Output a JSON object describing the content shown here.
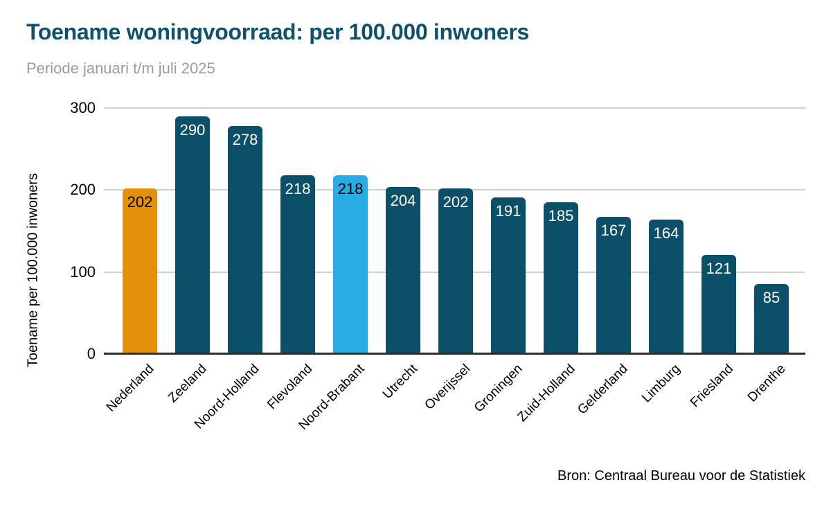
{
  "chart_data": {
    "type": "bar",
    "title": "Toename woningvoorraad: per 100.000 inwoners",
    "subtitle": "Periode januari t/m juli 2025",
    "ylabel": "Toename per 100.000 inwoners",
    "xlabel": "",
    "source": "Bron: Centraal Bureau voor de Statistiek",
    "ylim": [
      0,
      300
    ],
    "yticks": [
      0,
      100,
      200,
      300
    ],
    "grid": true,
    "legend": "none",
    "categories": [
      "Nederland",
      "Zeeland",
      "Noord-Holland",
      "Flevoland",
      "Noord-Brabant",
      "Utrecht",
      "Overijssel",
      "Groningen",
      "Zuid-Holland",
      "Gelderland",
      "Limburg",
      "Friesland",
      "Drenthe"
    ],
    "values": [
      202,
      290,
      278,
      218,
      218,
      204,
      202,
      191,
      185,
      167,
      164,
      121,
      85
    ],
    "bar_colors": [
      "#E5900A",
      "#0B4F68",
      "#0B4F68",
      "#0B4F68",
      "#29ACE3",
      "#0B4F68",
      "#0B4F68",
      "#0B4F68",
      "#0B4F68",
      "#0B4F68",
      "#0B4F68",
      "#0B4F68",
      "#0B4F68"
    ],
    "value_label_colors": [
      "#000000",
      "#FFFFFF",
      "#FFFFFF",
      "#FFFFFF",
      "#000000",
      "#FFFFFF",
      "#FFFFFF",
      "#FFFFFF",
      "#FFFFFF",
      "#FFFFFF",
      "#FFFFFF",
      "#FFFFFF",
      "#FFFFFF"
    ],
    "colors": {
      "default_bar": "#0B4F68",
      "highlight_nederland": "#E5900A",
      "highlight_noord_brabant": "#29ACE3",
      "title": "#0F506B",
      "subtitle": "#9C9C9C",
      "gridline": "#CFCFCF",
      "baseline": "#2E2B28"
    }
  }
}
